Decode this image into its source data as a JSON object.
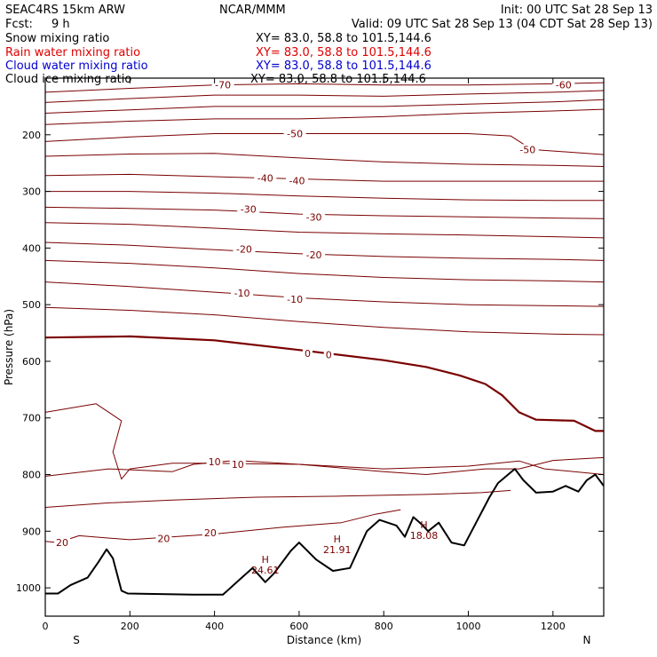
{
  "header": {
    "model": "SEAC4RS 15km ARW",
    "center": "NCAR/MMM",
    "init": "Init: 00 UTC Sat 28 Sep 13",
    "fcst_label": "Fcst:",
    "fcst_value": "9 h",
    "valid": "Valid: 09 UTC Sat 28 Sep 13 (04 CDT Sat 28 Sep 13)"
  },
  "fields": [
    {
      "name": "Snow mixing ratio",
      "xy": "XY=  83.0, 58.8 to 101.5,144.6",
      "color": "#000000"
    },
    {
      "name": "Rain water mixing ratio",
      "xy": "XY=  83.0, 58.8 to 101.5,144.6",
      "color": "#e00000"
    },
    {
      "name": "Cloud water mixing ratio",
      "xy": "XY=  83.0, 58.8 to 101.5,144.6",
      "color": "#0000d0"
    },
    {
      "name": "Cloud ice mixing ratio",
      "xy": "XY=  83.0, 58.8 to 101.5,144.6",
      "color": "#000000"
    }
  ],
  "chart_data": {
    "type": "line",
    "xlabel": "Distance (km)",
    "ylabel": "Pressure (hPa)",
    "xlim": [
      0,
      1320
    ],
    "ylim": [
      1050,
      100
    ],
    "x_ticks": [
      0,
      200,
      400,
      600,
      800,
      1000,
      1200
    ],
    "y_ticks": [
      200,
      300,
      400,
      500,
      600,
      700,
      800,
      900,
      1000
    ],
    "y_ticks_hidden": [
      100
    ],
    "x_end_labels": {
      "left": "S",
      "right": "N"
    },
    "isotherm_color": "#7a0000",
    "isotherms": [
      {
        "id": "t-70",
        "points": [
          [
            0,
            125
          ],
          [
            200,
            118
          ],
          [
            400,
            112
          ],
          [
            600,
            110
          ],
          [
            800,
            112
          ],
          [
            1000,
            112
          ],
          [
            1200,
            110
          ],
          [
            1320,
            108
          ]
        ]
      },
      {
        "id": "t-65",
        "points": [
          [
            0,
            143
          ],
          [
            200,
            136
          ],
          [
            400,
            130
          ],
          [
            600,
            130
          ],
          [
            800,
            132
          ],
          [
            1000,
            128
          ],
          [
            1200,
            125
          ],
          [
            1320,
            122
          ]
        ]
      },
      {
        "id": "t-60",
        "points": [
          [
            0,
            162
          ],
          [
            200,
            156
          ],
          [
            400,
            150
          ],
          [
            600,
            150
          ],
          [
            800,
            150
          ],
          [
            1000,
            146
          ],
          [
            1200,
            142
          ],
          [
            1320,
            138
          ]
        ]
      },
      {
        "id": "t-55",
        "points": [
          [
            0,
            182
          ],
          [
            200,
            176
          ],
          [
            400,
            172
          ],
          [
            600,
            172
          ],
          [
            800,
            168
          ],
          [
            1000,
            162
          ],
          [
            1200,
            158
          ],
          [
            1320,
            155
          ]
        ]
      },
      {
        "id": "t-50",
        "points": [
          [
            0,
            212
          ],
          [
            200,
            204
          ],
          [
            400,
            198
          ],
          [
            600,
            198
          ],
          [
            800,
            198
          ],
          [
            1000,
            198
          ],
          [
            1100,
            202
          ],
          [
            1150,
            226
          ],
          [
            1320,
            235
          ]
        ]
      },
      {
        "id": "t-45",
        "points": [
          [
            0,
            238
          ],
          [
            200,
            234
          ],
          [
            400,
            233
          ],
          [
            600,
            241
          ],
          [
            800,
            248
          ],
          [
            1000,
            252
          ],
          [
            1200,
            254
          ],
          [
            1320,
            256
          ]
        ]
      },
      {
        "id": "t-40",
        "points": [
          [
            0,
            272
          ],
          [
            200,
            270
          ],
          [
            400,
            274
          ],
          [
            600,
            278
          ],
          [
            800,
            282
          ],
          [
            1000,
            282
          ],
          [
            1200,
            282
          ],
          [
            1320,
            282
          ]
        ]
      },
      {
        "id": "t-35",
        "points": [
          [
            0,
            300
          ],
          [
            200,
            300
          ],
          [
            400,
            303
          ],
          [
            600,
            308
          ],
          [
            800,
            312
          ],
          [
            1000,
            315
          ],
          [
            1200,
            316
          ],
          [
            1320,
            316
          ]
        ]
      },
      {
        "id": "t-30",
        "points": [
          [
            0,
            328
          ],
          [
            200,
            330
          ],
          [
            400,
            333
          ],
          [
            600,
            340
          ],
          [
            800,
            343
          ],
          [
            1000,
            345
          ],
          [
            1200,
            347
          ],
          [
            1320,
            348
          ]
        ]
      },
      {
        "id": "t-25",
        "points": [
          [
            0,
            355
          ],
          [
            200,
            358
          ],
          [
            400,
            365
          ],
          [
            600,
            372
          ],
          [
            800,
            375
          ],
          [
            1000,
            377
          ],
          [
            1200,
            380
          ],
          [
            1320,
            382
          ]
        ]
      },
      {
        "id": "t-20",
        "points": [
          [
            0,
            390
          ],
          [
            200,
            395
          ],
          [
            400,
            403
          ],
          [
            600,
            410
          ],
          [
            800,
            415
          ],
          [
            1000,
            418
          ],
          [
            1200,
            420
          ],
          [
            1320,
            422
          ]
        ]
      },
      {
        "id": "t-15",
        "points": [
          [
            0,
            422
          ],
          [
            200,
            427
          ],
          [
            400,
            435
          ],
          [
            600,
            445
          ],
          [
            800,
            452
          ],
          [
            1000,
            456
          ],
          [
            1200,
            458
          ],
          [
            1320,
            460
          ]
        ]
      },
      {
        "id": "t-10",
        "points": [
          [
            0,
            460
          ],
          [
            200,
            468
          ],
          [
            400,
            478
          ],
          [
            600,
            488
          ],
          [
            800,
            495
          ],
          [
            1000,
            500
          ],
          [
            1200,
            502
          ],
          [
            1320,
            503
          ]
        ]
      },
      {
        "id": "t-5",
        "points": [
          [
            0,
            505
          ],
          [
            200,
            510
          ],
          [
            400,
            518
          ],
          [
            600,
            530
          ],
          [
            800,
            540
          ],
          [
            1000,
            548
          ],
          [
            1200,
            552
          ],
          [
            1320,
            553
          ]
        ]
      },
      {
        "id": "t0",
        "points": [
          [
            0,
            558
          ],
          [
            200,
            556
          ],
          [
            400,
            563
          ],
          [
            600,
            580
          ],
          [
            800,
            598
          ],
          [
            900,
            610
          ],
          [
            980,
            625
          ],
          [
            1040,
            640
          ],
          [
            1080,
            660
          ],
          [
            1120,
            690
          ],
          [
            1160,
            703
          ],
          [
            1250,
            705
          ],
          [
            1300,
            723
          ],
          [
            1320,
            723
          ]
        ],
        "width": 2.2
      },
      {
        "id": "t5",
        "points": [
          [
            0,
            690
          ],
          [
            120,
            675
          ],
          [
            180,
            705
          ],
          [
            160,
            760
          ],
          [
            180,
            808
          ],
          [
            200,
            790
          ],
          [
            300,
            780
          ],
          [
            400,
            780
          ],
          [
            600,
            782
          ],
          [
            800,
            795
          ],
          [
            900,
            800
          ],
          [
            1040,
            790
          ],
          [
            1120,
            790
          ],
          [
            1200,
            775
          ],
          [
            1320,
            770
          ]
        ]
      },
      {
        "id": "t10",
        "points": [
          [
            0,
            803
          ],
          [
            150,
            790
          ],
          [
            300,
            795
          ],
          [
            350,
            782
          ],
          [
            450,
            775
          ],
          [
            600,
            782
          ],
          [
            800,
            790
          ],
          [
            1000,
            785
          ],
          [
            1120,
            776
          ],
          [
            1180,
            790
          ],
          [
            1320,
            800
          ]
        ]
      },
      {
        "id": "t15",
        "points": [
          [
            0,
            858
          ],
          [
            150,
            850
          ],
          [
            300,
            845
          ],
          [
            500,
            840
          ],
          [
            700,
            838
          ],
          [
            900,
            835
          ],
          [
            1030,
            832
          ],
          [
            1100,
            828
          ]
        ]
      },
      {
        "id": "t20",
        "points": [
          [
            0,
            918
          ],
          [
            30,
            920
          ],
          [
            80,
            908
          ],
          [
            200,
            915
          ],
          [
            400,
            905
          ],
          [
            560,
            893
          ],
          [
            700,
            885
          ],
          [
            780,
            870
          ],
          [
            840,
            862
          ]
        ]
      }
    ],
    "terrain": [
      [
        0,
        1010
      ],
      [
        30,
        1010
      ],
      [
        60,
        995
      ],
      [
        100,
        982
      ],
      [
        125,
        955
      ],
      [
        145,
        932
      ],
      [
        160,
        948
      ],
      [
        180,
        1005
      ],
      [
        195,
        1010
      ],
      [
        350,
        1012
      ],
      [
        420,
        1012
      ],
      [
        460,
        985
      ],
      [
        490,
        965
      ],
      [
        520,
        990
      ],
      [
        540,
        975
      ],
      [
        580,
        935
      ],
      [
        600,
        920
      ],
      [
        640,
        950
      ],
      [
        680,
        970
      ],
      [
        720,
        965
      ],
      [
        760,
        900
      ],
      [
        790,
        880
      ],
      [
        830,
        890
      ],
      [
        850,
        910
      ],
      [
        870,
        875
      ],
      [
        890,
        888
      ],
      [
        905,
        900
      ],
      [
        930,
        885
      ],
      [
        960,
        920
      ],
      [
        990,
        925
      ],
      [
        1050,
        840
      ],
      [
        1070,
        815
      ],
      [
        1110,
        790
      ],
      [
        1130,
        810
      ],
      [
        1160,
        832
      ],
      [
        1200,
        830
      ],
      [
        1230,
        820
      ],
      [
        1260,
        830
      ],
      [
        1280,
        810
      ],
      [
        1300,
        800
      ],
      [
        1320,
        820
      ]
    ],
    "contour_labels": [
      {
        "text": "-70",
        "x": 420,
        "p": 112
      },
      {
        "text": "-60",
        "x": 1225,
        "p": 112
      },
      {
        "text": "-50",
        "x": 590,
        "p": 198
      },
      {
        "text": "-50",
        "x": 1140,
        "p": 226
      },
      {
        "text": "-40",
        "x": 520,
        "p": 276
      },
      {
        "text": "-40",
        "x": 595,
        "p": 281
      },
      {
        "text": "-30",
        "x": 480,
        "p": 331
      },
      {
        "text": "-30",
        "x": 635,
        "p": 345
      },
      {
        "text": "-20",
        "x": 470,
        "p": 402
      },
      {
        "text": "-20",
        "x": 635,
        "p": 412
      },
      {
        "text": "-10",
        "x": 465,
        "p": 479
      },
      {
        "text": "-10",
        "x": 590,
        "p": 490
      },
      {
        "text": "0",
        "x": 620,
        "p": 586
      },
      {
        "text": "0",
        "x": 670,
        "p": 588
      },
      {
        "text": "10",
        "x": 400,
        "p": 777
      },
      {
        "text": "10",
        "x": 455,
        "p": 782
      },
      {
        "text": "20",
        "x": 40,
        "p": 920
      },
      {
        "text": "20",
        "x": 280,
        "p": 913
      },
      {
        "text": "20",
        "x": 390,
        "p": 903
      }
    ],
    "highs": [
      {
        "label": "H",
        "value": "24.61",
        "x": 520,
        "p": 956
      },
      {
        "label": "H",
        "value": "21.91",
        "x": 690,
        "p": 920
      },
      {
        "label": "H",
        "value": "18.08",
        "x": 895,
        "p": 895
      }
    ]
  }
}
